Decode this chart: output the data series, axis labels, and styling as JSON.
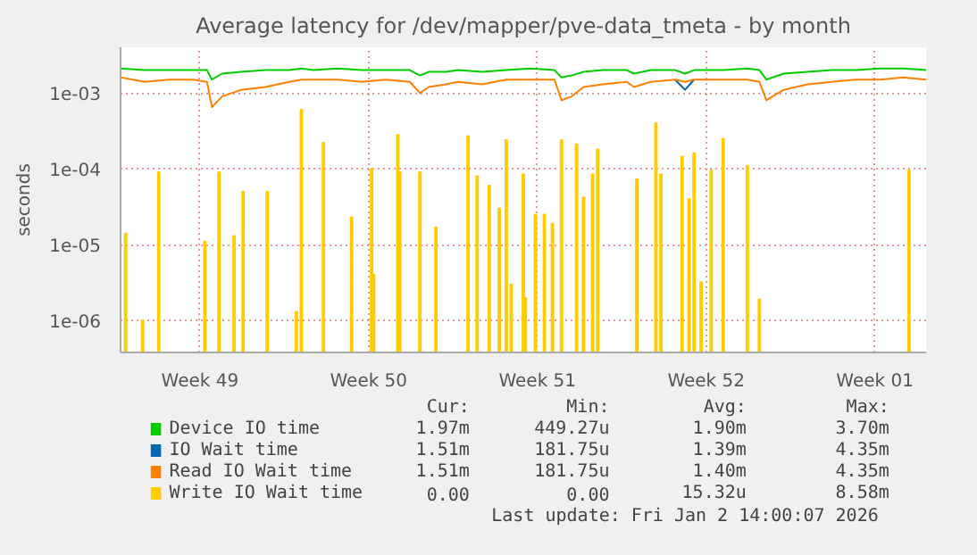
{
  "chart_data": {
    "type": "line",
    "title": "Average latency for /dev/mapper/pve-data_tmeta - by month",
    "ylabel": "seconds",
    "log": "y",
    "grid": true,
    "legend": "bottom",
    "xlim": [
      "2025-12-01T05:00",
      "2026-01-03T15:00"
    ],
    "xticks": [
      {
        "value": "2025-12-04T12:00",
        "label": "Week 49"
      },
      {
        "value": "2025-12-11T12:00",
        "label": "Week 50"
      },
      {
        "value": "2025-12-18T12:00",
        "label": "Week 51"
      },
      {
        "value": "2025-12-25T12:00",
        "label": "Week 52"
      },
      {
        "value": "2026-01-01T12:00",
        "label": "Week 01"
      }
    ],
    "ylim": [
      3.8e-07,
      0.004
    ],
    "yticks": [
      {
        "value": 1e-06,
        "label": "1e-06"
      },
      {
        "value": 1e-05,
        "label": "1e-05"
      },
      {
        "value": 0.0001,
        "label": "1e-04"
      },
      {
        "value": 0.001,
        "label": "1e-03"
      }
    ],
    "x": [
      "2025-12-01T05:00",
      "2025-12-02T05:00",
      "2025-12-03T05:00",
      "2025-12-04T05:00",
      "2025-12-04T19:00",
      "2025-12-05T00:00",
      "2025-12-05T10:00",
      "2025-12-06T05:00",
      "2025-12-07T05:00",
      "2025-12-08T05:00",
      "2025-12-08T17:00",
      "2025-12-09T05:00",
      "2025-12-10T05:00",
      "2025-12-11T05:00",
      "2025-12-12T05:00",
      "2025-12-13T05:00",
      "2025-12-13T15:00",
      "2025-12-14T00:00",
      "2025-12-14T17:00",
      "2025-12-15T05:00",
      "2025-12-16T05:00",
      "2025-12-17T05:00",
      "2025-12-18T05:00",
      "2025-12-19T05:00",
      "2025-12-19T12:00",
      "2025-12-19T22:00",
      "2025-12-20T10:00",
      "2025-12-21T05:00",
      "2025-12-22T05:00",
      "2025-12-22T12:00",
      "2025-12-23T05:00",
      "2025-12-24T05:00",
      "2025-12-24T15:00",
      "2025-12-25T00:00",
      "2025-12-25T17:00",
      "2025-12-26T05:00",
      "2025-12-27T05:00",
      "2025-12-27T17:00",
      "2025-12-28T00:00",
      "2025-12-28T17:00",
      "2025-12-29T17:00",
      "2025-12-30T17:00",
      "2025-12-31T17:00",
      "2026-01-01T17:00",
      "2026-01-02T17:00",
      "2026-01-03T15:00"
    ],
    "series": [
      {
        "name": "Device IO time",
        "color": "#00cc00",
        "values": [
          0.0021,
          0.002,
          0.002,
          0.002,
          0.002,
          0.0015,
          0.0018,
          0.0019,
          0.002,
          0.002,
          0.0021,
          0.002,
          0.0021,
          0.002,
          0.002,
          0.002,
          0.0017,
          0.0019,
          0.0019,
          0.002,
          0.0019,
          0.002,
          0.0021,
          0.002,
          0.0016,
          0.0017,
          0.0019,
          0.002,
          0.002,
          0.0018,
          0.002,
          0.002,
          0.0018,
          0.002,
          0.002,
          0.002,
          0.0021,
          0.002,
          0.0015,
          0.0018,
          0.0019,
          0.002,
          0.002,
          0.0021,
          0.0021,
          0.002
        ]
      },
      {
        "name": "IO Wait time",
        "color": "#0066b3",
        "values": [
          null,
          null,
          null,
          null,
          null,
          null,
          null,
          null,
          null,
          null,
          null,
          null,
          null,
          null,
          null,
          null,
          null,
          null,
          null,
          null,
          null,
          null,
          null,
          null,
          null,
          null,
          null,
          null,
          null,
          null,
          null,
          0.0015,
          0.0011,
          0.0015,
          null,
          null,
          null,
          null,
          null,
          null,
          null,
          null,
          null,
          null,
          null,
          null
        ]
      },
      {
        "name": "Read IO Wait time",
        "color": "#ff8000",
        "values": [
          0.0016,
          0.0014,
          0.0015,
          0.0015,
          0.0014,
          0.00065,
          0.0009,
          0.0011,
          0.0012,
          0.0014,
          0.0015,
          0.0015,
          0.0015,
          0.0014,
          0.0015,
          0.0014,
          0.001,
          0.0012,
          0.0013,
          0.0014,
          0.0013,
          0.0015,
          0.0015,
          0.0015,
          0.0008,
          0.0009,
          0.0012,
          0.0013,
          0.0014,
          0.0012,
          0.0014,
          0.0015,
          0.0014,
          0.0015,
          0.0015,
          0.0015,
          0.0015,
          0.0014,
          0.0008,
          0.0011,
          0.0013,
          0.0014,
          0.0015,
          0.0015,
          0.0016,
          0.0015
        ]
      },
      {
        "name": "Write IO Wait time",
        "color": "#ffcc00",
        "type": "bar",
        "x": [
          "2025-12-01T10:00",
          "2025-12-02T03:00",
          "2025-12-02T19:00",
          "2025-12-04T17:00",
          "2025-12-05T07:00",
          "2025-12-05T22:00",
          "2025-12-06T07:00",
          "2025-12-07T07:00",
          "2025-12-08T12:00",
          "2025-12-08T17:00",
          "2025-12-09T15:00",
          "2025-12-10T19:00",
          "2025-12-11T15:00",
          "2025-12-11T17:00",
          "2025-12-12T17:00",
          "2025-12-12T19:00",
          "2025-12-13T15:00",
          "2025-12-14T07:00",
          "2025-12-15T15:00",
          "2025-12-16T00:00",
          "2025-12-16T12:00",
          "2025-12-16T22:00",
          "2025-12-17T05:00",
          "2025-12-17T10:00",
          "2025-12-17T22:00",
          "2025-12-18T00:00",
          "2025-12-18T10:00",
          "2025-12-18T19:00",
          "2025-12-19T03:00",
          "2025-12-19T12:00",
          "2025-12-20T03:00",
          "2025-12-20T10:00",
          "2025-12-20T19:00",
          "2025-12-21T00:00",
          "2025-12-22T15:00",
          "2025-12-23T10:00",
          "2025-12-23T15:00",
          "2025-12-24T12:00",
          "2025-12-24T19:00",
          "2025-12-25T00:00",
          "2025-12-25T07:00",
          "2025-12-25T17:00",
          "2025-12-26T05:00",
          "2025-12-27T05:00",
          "2025-12-27T17:00",
          "2026-01-02T22:00"
        ],
        "values": [
          1.4e-05,
          1e-06,
          9e-05,
          1.1e-05,
          9e-05,
          1.3e-05,
          5e-05,
          5e-05,
          1.3e-06,
          0.0006,
          0.00022,
          2.3e-05,
          0.0001,
          4e-06,
          0.00028,
          9e-05,
          9e-05,
          1.7e-05,
          0.00027,
          8e-05,
          6e-05,
          3e-05,
          0.00024,
          3e-06,
          8.5e-05,
          2e-06,
          2.5e-05,
          2.5e-05,
          1.9e-05,
          0.00024,
          0.00021,
          4.2e-05,
          8.5e-05,
          0.00018,
          7.3e-05,
          0.0004,
          8.5e-05,
          0.000145,
          4e-05,
          0.00016,
          3.2e-06,
          9.5e-05,
          0.00025,
          0.00011,
          1.9e-06,
          9.5e-05
        ]
      }
    ],
    "annotations": [
      "Cur:",
      "Min:",
      "Avg:",
      "Max:",
      "1.97m",
      "449.27u",
      "1.90m",
      "3.70m",
      "1.51m",
      "181.75u",
      "1.39m",
      "4.35m",
      "1.51m",
      "181.75u",
      "1.40m",
      "4.35m",
      "0.00",
      "0.00",
      "15.32u",
      "8.58m",
      "Last update: Fri Jan  2 14:00:07 2026"
    ]
  }
}
